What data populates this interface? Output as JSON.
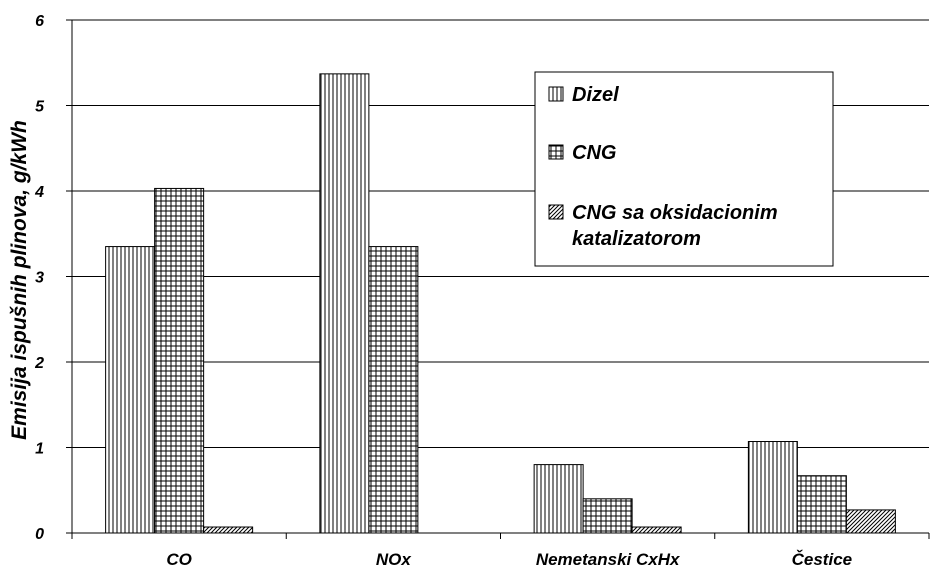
{
  "chart_data": {
    "type": "bar",
    "categories": [
      "CO",
      "NOx",
      "Nemetanski CxHx",
      "Čestice"
    ],
    "series": [
      {
        "name": "Dizel",
        "values": [
          3.35,
          5.37,
          0.8,
          1.07
        ],
        "pattern": "vertical-lines"
      },
      {
        "name": "CNG",
        "values": [
          4.03,
          3.35,
          0.4,
          0.67
        ],
        "pattern": "grid"
      },
      {
        "name": "CNG sa oksidacionim katalizatorom",
        "values": [
          0.07,
          0.0,
          0.07,
          0.27
        ],
        "pattern": "diagonal-lines"
      }
    ],
    "ylabel": "Emisija ispušnih plinova, g/kWh",
    "xlabel": "",
    "ylim": [
      0,
      6
    ],
    "yticks": [
      0,
      1,
      2,
      3,
      4,
      5,
      6
    ],
    "grid": true,
    "legend_position": "top-right",
    "legend_lines": [
      [
        "Dizel"
      ],
      [
        "CNG"
      ],
      [
        "CNG sa oksidacionim",
        "katalizatorom"
      ]
    ]
  }
}
